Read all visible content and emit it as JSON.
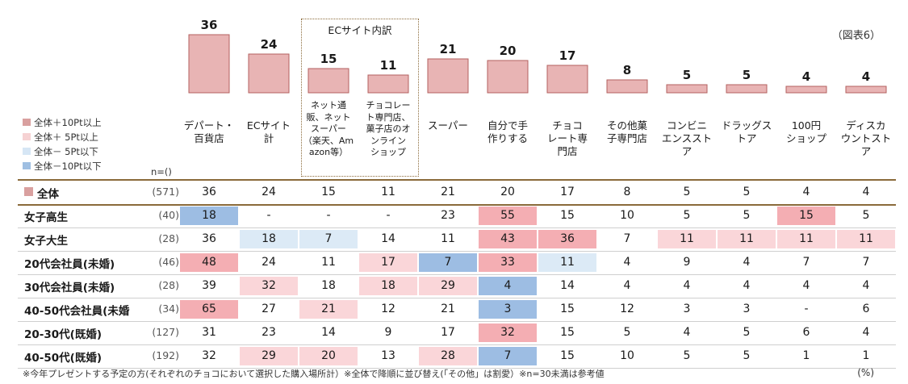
{
  "figure_label": "（図表6）",
  "n_label": "n=()",
  "ec_group_label": "ECサイト内訳",
  "legend": [
    {
      "label": "全体＋10Pt以上",
      "color": "#d9a09f"
    },
    {
      "label": "全体＋ 5Pt以上",
      "color": "#f6d2d3"
    },
    {
      "label": "全体－ 5Pt以下",
      "color": "#d6e6f5"
    },
    {
      "label": "全体－10Pt以下",
      "color": "#9fbfe2"
    }
  ],
  "footnote": "※今年プレゼントする予定の方(それぞれのチョコにおいて選択した購入場所計）※全体で降順に並び替え(「その他」は割愛）※n=30未満は参考値",
  "unit": "(%)",
  "chart_data": {
    "type": "bar",
    "categories": [
      "デパート・百貨店",
      "ECサイト計",
      "ネット通販、ネットスーパー（楽天、Amazon等）",
      "チョコレート専門店、菓子店のオンラインショップ",
      "スーパー",
      "自分で手作りする",
      "チョコレート専門店",
      "その他菓子専門店",
      "コンビニエンスストア",
      "ドラッグストア",
      "100円ショップ",
      "ディスカウントストア"
    ],
    "header_lines": [
      [
        "デパート・",
        "百貨店"
      ],
      [
        "ECサイト",
        "計"
      ],
      [
        "ネット通",
        "販、ネット",
        "スーパー",
        "（楽天、Am",
        "azon等）"
      ],
      [
        "チョコレー",
        "ト専門店、",
        "菓子店のオ",
        "ンライン",
        "ショップ"
      ],
      [
        "スーパー"
      ],
      [
        "自分で手",
        "作りする"
      ],
      [
        "チョコ",
        "レート専",
        "門店"
      ],
      [
        "その他菓",
        "子専門店"
      ],
      [
        "コンビニ",
        "エンススト",
        "ア"
      ],
      [
        "ドラッグス",
        "トア"
      ],
      [
        "100円",
        "ショップ"
      ],
      [
        "ディスカ",
        "ウントスト",
        "ア"
      ]
    ],
    "values": [
      36,
      24,
      15,
      11,
      21,
      20,
      17,
      8,
      5,
      5,
      4,
      4
    ],
    "bar_color": "#e8b4b4",
    "bar_border": "#b3615f",
    "rows": [
      {
        "label": "全体",
        "n": "(571)",
        "values": [
          "36",
          "24",
          "15",
          "11",
          "21",
          "20",
          "17",
          "8",
          "5",
          "5",
          "4",
          "4"
        ],
        "hl": [
          "",
          "",
          "",
          "",
          "",
          "",
          "",
          "",
          "",
          "",
          "",
          ""
        ]
      },
      {
        "label": "女子高生",
        "n": "(40)",
        "values": [
          "18",
          "-",
          "-",
          "-",
          "23",
          "55",
          "15",
          "10",
          "5",
          "5",
          "15",
          "5"
        ],
        "hl": [
          "m10",
          "",
          "",
          "",
          "",
          "p10",
          "",
          "",
          "",
          "",
          "p10",
          ""
        ]
      },
      {
        "label": "女子大生",
        "n": "(28)",
        "values": [
          "36",
          "18",
          "7",
          "14",
          "11",
          "43",
          "36",
          "7",
          "11",
          "11",
          "11",
          "11"
        ],
        "hl": [
          "",
          "m5",
          "m5",
          "",
          "",
          "p10",
          "p10",
          "",
          "p5",
          "p5",
          "p5",
          "p5"
        ]
      },
      {
        "label": "20代会社員(未婚)",
        "n": "(46)",
        "values": [
          "48",
          "24",
          "11",
          "17",
          "7",
          "33",
          "11",
          "4",
          "9",
          "4",
          "7",
          "7"
        ],
        "hl": [
          "p10",
          "",
          "",
          "p5",
          "m10",
          "p10",
          "m5",
          "",
          "",
          "",
          "",
          ""
        ]
      },
      {
        "label": "30代会社員(未婚)",
        "n": "(28)",
        "values": [
          "39",
          "32",
          "18",
          "18",
          "29",
          "4",
          "14",
          "4",
          "4",
          "4",
          "4",
          "4"
        ],
        "hl": [
          "",
          "p5",
          "",
          "p5",
          "p5",
          "m10",
          "",
          "",
          "",
          "",
          "",
          ""
        ]
      },
      {
        "label": "40-50代会社員(未婚",
        "n": "(34)",
        "values": [
          "65",
          "27",
          "21",
          "12",
          "21",
          "3",
          "15",
          "12",
          "3",
          "3",
          "-",
          "6"
        ],
        "hl": [
          "p10",
          "",
          "p5",
          "",
          "",
          "m10",
          "",
          "",
          "",
          "",
          "",
          ""
        ]
      },
      {
        "label": "20-30代(既婚)",
        "n": "(127)",
        "values": [
          "31",
          "23",
          "14",
          "9",
          "17",
          "32",
          "15",
          "5",
          "4",
          "5",
          "6",
          "4"
        ],
        "hl": [
          "",
          "",
          "",
          "",
          "",
          "p10",
          "",
          "",
          "",
          "",
          "",
          ""
        ]
      },
      {
        "label": "40-50代(既婚)",
        "n": "(192)",
        "values": [
          "32",
          "29",
          "20",
          "13",
          "28",
          "7",
          "15",
          "10",
          "5",
          "5",
          "1",
          "1"
        ],
        "hl": [
          "",
          "p5",
          "p5",
          "",
          "p5",
          "m10",
          "",
          "",
          "",
          "",
          "",
          ""
        ]
      }
    ],
    "highlight_colors": {
      "p10": "#f4aeb3",
      "p5": "#fad6d9",
      "m5": "#dceaf6",
      "m10": "#9dbde3"
    }
  }
}
